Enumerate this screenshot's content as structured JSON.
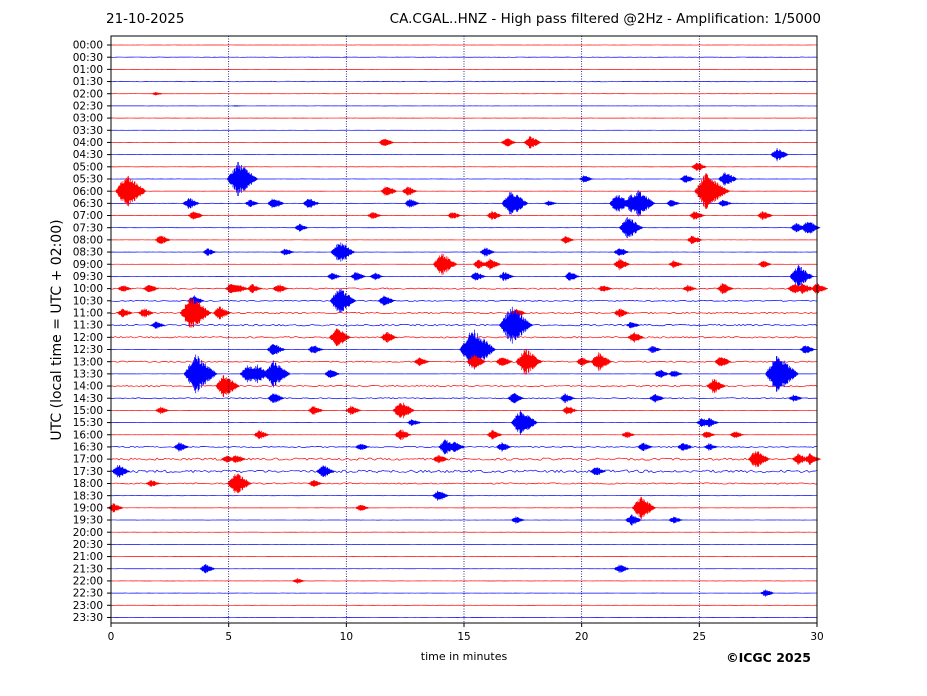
{
  "header": {
    "date": "21-10-2025",
    "title": "CA.CGAL..HNZ - High pass filtered @2Hz - Amplification: 1/5000"
  },
  "footer": {
    "copyright": "©ICGC 2025"
  },
  "chart_data": {
    "type": "line",
    "title": "CA.CGAL..HNZ - High pass filtered @2Hz - Amplification: 1/5000",
    "xlabel": "time in minutes",
    "ylabel": "UTC (local time = UTC + 02:00)",
    "xlim": [
      0,
      30
    ],
    "x_ticks": [
      "0",
      "5",
      "10",
      "15",
      "20",
      "25",
      "30"
    ],
    "y_ticks": [
      "00:00",
      "00:30",
      "01:00",
      "01:30",
      "02:00",
      "02:30",
      "03:00",
      "03:30",
      "04:00",
      "04:30",
      "05:00",
      "05:30",
      "06:00",
      "06:30",
      "07:00",
      "07:30",
      "08:00",
      "08:30",
      "09:00",
      "09:30",
      "10:00",
      "10:30",
      "11:00",
      "11:30",
      "12:00",
      "12:30",
      "13:00",
      "13:30",
      "14:00",
      "14:30",
      "15:00",
      "15:30",
      "16:00",
      "16:30",
      "17:00",
      "17:30",
      "18:00",
      "18:30",
      "19:00",
      "19:30",
      "20:00",
      "20:30",
      "21:00",
      "21:30",
      "22:00",
      "22:30",
      "23:00",
      "23:30"
    ],
    "vertical_gridlines": [
      5,
      10,
      15,
      20,
      25
    ],
    "colors": [
      "#ff0000",
      "#0000ff"
    ],
    "grid": true,
    "events": [
      {
        "row": 4,
        "t": 1.9,
        "a": 2
      },
      {
        "row": 5,
        "t": 5.3,
        "a": 1
      },
      {
        "row": 8,
        "t": 11.6,
        "a": 5
      },
      {
        "row": 8,
        "t": 16.8,
        "a": 5
      },
      {
        "row": 8,
        "t": 17.8,
        "a": 7
      },
      {
        "row": 9,
        "t": 28.3,
        "a": 7
      },
      {
        "row": 10,
        "t": 24.9,
        "a": 5
      },
      {
        "row": 11,
        "t": 5.4,
        "a": 18
      },
      {
        "row": 11,
        "t": 20.1,
        "a": 4
      },
      {
        "row": 11,
        "t": 24.4,
        "a": 5
      },
      {
        "row": 11,
        "t": 26.1,
        "a": 8
      },
      {
        "row": 12,
        "t": 0.65,
        "a": 18
      },
      {
        "row": 12,
        "t": 11.7,
        "a": 6
      },
      {
        "row": 12,
        "t": 12.6,
        "a": 5
      },
      {
        "row": 12,
        "t": 25.3,
        "a": 20
      },
      {
        "row": 12,
        "t": 25.9,
        "a": 5
      },
      {
        "row": 13,
        "t": 3.3,
        "a": 6
      },
      {
        "row": 13,
        "t": 5.9,
        "a": 4
      },
      {
        "row": 13,
        "t": 6.9,
        "a": 6
      },
      {
        "row": 13,
        "t": 8.4,
        "a": 6
      },
      {
        "row": 13,
        "t": 12.7,
        "a": 5
      },
      {
        "row": 13,
        "t": 17.0,
        "a": 14
      },
      {
        "row": 13,
        "t": 18.6,
        "a": 3
      },
      {
        "row": 13,
        "t": 21.5,
        "a": 10
      },
      {
        "row": 13,
        "t": 22.1,
        "a": 10
      },
      {
        "row": 13,
        "t": 22.4,
        "a": 14
      },
      {
        "row": 13,
        "t": 23.8,
        "a": 4
      },
      {
        "row": 13,
        "t": 26.0,
        "a": 4
      },
      {
        "row": 14,
        "t": 3.5,
        "a": 5
      },
      {
        "row": 14,
        "t": 11.1,
        "a": 4
      },
      {
        "row": 14,
        "t": 14.5,
        "a": 4
      },
      {
        "row": 14,
        "t": 16.2,
        "a": 5
      },
      {
        "row": 14,
        "t": 24.8,
        "a": 5
      },
      {
        "row": 14,
        "t": 27.7,
        "a": 5
      },
      {
        "row": 15,
        "t": 8.0,
        "a": 4
      },
      {
        "row": 15,
        "t": 21.95,
        "a": 12
      },
      {
        "row": 15,
        "t": 29.1,
        "a": 5
      },
      {
        "row": 15,
        "t": 29.6,
        "a": 8
      },
      {
        "row": 16,
        "t": 2.1,
        "a": 5
      },
      {
        "row": 16,
        "t": 19.3,
        "a": 4
      },
      {
        "row": 16,
        "t": 24.7,
        "a": 5
      },
      {
        "row": 17,
        "t": 4.1,
        "a": 4
      },
      {
        "row": 17,
        "t": 7.4,
        "a": 4
      },
      {
        "row": 17,
        "t": 9.7,
        "a": 12
      },
      {
        "row": 17,
        "t": 15.9,
        "a": 5
      },
      {
        "row": 17,
        "t": 21.6,
        "a": 5
      },
      {
        "row": 18,
        "t": 14.05,
        "a": 12
      },
      {
        "row": 18,
        "t": 15.6,
        "a": 5
      },
      {
        "row": 18,
        "t": 16.1,
        "a": 6
      },
      {
        "row": 18,
        "t": 21.6,
        "a": 6
      },
      {
        "row": 18,
        "t": 23.9,
        "a": 4
      },
      {
        "row": 18,
        "t": 27.7,
        "a": 4
      },
      {
        "row": 19,
        "t": 9.4,
        "a": 4
      },
      {
        "row": 19,
        "t": 10.4,
        "a": 5
      },
      {
        "row": 19,
        "t": 11.2,
        "a": 4
      },
      {
        "row": 19,
        "t": 15.5,
        "a": 5
      },
      {
        "row": 19,
        "t": 16.7,
        "a": 5
      },
      {
        "row": 19,
        "t": 19.5,
        "a": 5
      },
      {
        "row": 19,
        "t": 29.2,
        "a": 12
      },
      {
        "row": 20,
        "t": 0.5,
        "a": 4
      },
      {
        "row": 20,
        "t": 1.6,
        "a": 5
      },
      {
        "row": 20,
        "t": 5.1,
        "a": 6
      },
      {
        "row": 20,
        "t": 5.4,
        "a": 5
      },
      {
        "row": 20,
        "t": 6.0,
        "a": 5
      },
      {
        "row": 20,
        "t": 7.1,
        "a": 5
      },
      {
        "row": 20,
        "t": 20.9,
        "a": 4
      },
      {
        "row": 20,
        "t": 24.5,
        "a": 4
      },
      {
        "row": 20,
        "t": 26.0,
        "a": 6
      },
      {
        "row": 20,
        "t": 29.0,
        "a": 6
      },
      {
        "row": 20,
        "t": 29.4,
        "a": 6
      },
      {
        "row": 20,
        "t": 30.0,
        "a": 6
      },
      {
        "row": 21,
        "t": 3.5,
        "a": 6
      },
      {
        "row": 21,
        "t": 9.7,
        "a": 14
      },
      {
        "row": 21,
        "t": 11.6,
        "a": 6
      },
      {
        "row": 22,
        "t": 0.5,
        "a": 5
      },
      {
        "row": 22,
        "t": 1.4,
        "a": 5
      },
      {
        "row": 22,
        "t": 3.4,
        "a": 18
      },
      {
        "row": 22,
        "t": 4.6,
        "a": 7
      },
      {
        "row": 22,
        "t": 17.2,
        "a": 5
      },
      {
        "row": 22,
        "t": 21.6,
        "a": 5
      },
      {
        "row": 23,
        "t": 1.9,
        "a": 4
      },
      {
        "row": 23,
        "t": 17.0,
        "a": 20
      },
      {
        "row": 23,
        "t": 22.1,
        "a": 4
      },
      {
        "row": 24,
        "t": 9.6,
        "a": 10
      },
      {
        "row": 24,
        "t": 11.7,
        "a": 6
      },
      {
        "row": 24,
        "t": 22.2,
        "a": 6
      },
      {
        "row": 25,
        "t": 6.9,
        "a": 7
      },
      {
        "row": 25,
        "t": 8.6,
        "a": 5
      },
      {
        "row": 25,
        "t": 15.35,
        "a": 22
      },
      {
        "row": 25,
        "t": 23.0,
        "a": 4
      },
      {
        "row": 25,
        "t": 29.5,
        "a": 5
      },
      {
        "row": 26,
        "t": 13.1,
        "a": 5
      },
      {
        "row": 26,
        "t": 15.4,
        "a": 8
      },
      {
        "row": 26,
        "t": 16.6,
        "a": 6
      },
      {
        "row": 26,
        "t": 17.6,
        "a": 14
      },
      {
        "row": 26,
        "t": 20.0,
        "a": 5
      },
      {
        "row": 26,
        "t": 20.7,
        "a": 10
      },
      {
        "row": 26,
        "t": 25.9,
        "a": 6
      },
      {
        "row": 27,
        "t": 3.6,
        "a": 20
      },
      {
        "row": 27,
        "t": 5.8,
        "a": 10
      },
      {
        "row": 27,
        "t": 6.2,
        "a": 10
      },
      {
        "row": 27,
        "t": 6.9,
        "a": 14
      },
      {
        "row": 27,
        "t": 9.3,
        "a": 5
      },
      {
        "row": 27,
        "t": 23.3,
        "a": 5
      },
      {
        "row": 27,
        "t": 23.9,
        "a": 4
      },
      {
        "row": 27,
        "t": 28.3,
        "a": 20
      },
      {
        "row": 28,
        "t": 4.8,
        "a": 12
      },
      {
        "row": 28,
        "t": 25.6,
        "a": 8
      },
      {
        "row": 29,
        "t": 6.9,
        "a": 6
      },
      {
        "row": 29,
        "t": 17.1,
        "a": 6
      },
      {
        "row": 29,
        "t": 19.3,
        "a": 5
      },
      {
        "row": 29,
        "t": 23.1,
        "a": 5
      },
      {
        "row": 29,
        "t": 29.0,
        "a": 4
      },
      {
        "row": 30,
        "t": 2.1,
        "a": 4
      },
      {
        "row": 30,
        "t": 8.6,
        "a": 5
      },
      {
        "row": 30,
        "t": 10.2,
        "a": 5
      },
      {
        "row": 30,
        "t": 12.3,
        "a": 10
      },
      {
        "row": 30,
        "t": 19.4,
        "a": 5
      },
      {
        "row": 31,
        "t": 12.8,
        "a": 4
      },
      {
        "row": 31,
        "t": 17.4,
        "a": 14
      },
      {
        "row": 31,
        "t": 25.1,
        "a": 5
      },
      {
        "row": 31,
        "t": 25.4,
        "a": 5
      },
      {
        "row": 32,
        "t": 6.3,
        "a": 5
      },
      {
        "row": 32,
        "t": 12.3,
        "a": 6
      },
      {
        "row": 32,
        "t": 16.2,
        "a": 5
      },
      {
        "row": 32,
        "t": 21.9,
        "a": 4
      },
      {
        "row": 32,
        "t": 25.3,
        "a": 4
      },
      {
        "row": 32,
        "t": 26.5,
        "a": 4
      },
      {
        "row": 33,
        "t": 2.9,
        "a": 5
      },
      {
        "row": 33,
        "t": 10.6,
        "a": 4
      },
      {
        "row": 33,
        "t": 14.2,
        "a": 8
      },
      {
        "row": 33,
        "t": 14.6,
        "a": 6
      },
      {
        "row": 33,
        "t": 16.6,
        "a": 5
      },
      {
        "row": 33,
        "t": 22.6,
        "a": 5
      },
      {
        "row": 33,
        "t": 24.3,
        "a": 5
      },
      {
        "row": 33,
        "t": 25.4,
        "a": 4
      },
      {
        "row": 34,
        "t": 4.9,
        "a": 4
      },
      {
        "row": 34,
        "t": 5.3,
        "a": 5
      },
      {
        "row": 34,
        "t": 13.9,
        "a": 5
      },
      {
        "row": 34,
        "t": 27.4,
        "a": 10
      },
      {
        "row": 34,
        "t": 29.2,
        "a": 6
      },
      {
        "row": 34,
        "t": 29.7,
        "a": 6
      },
      {
        "row": 35,
        "t": 0.3,
        "a": 7
      },
      {
        "row": 35,
        "t": 9.0,
        "a": 7
      },
      {
        "row": 35,
        "t": 20.6,
        "a": 5
      },
      {
        "row": 36,
        "t": 1.7,
        "a": 4
      },
      {
        "row": 36,
        "t": 5.3,
        "a": 12
      },
      {
        "row": 36,
        "t": 8.6,
        "a": 4
      },
      {
        "row": 37,
        "t": 13.9,
        "a": 6
      },
      {
        "row": 38,
        "t": 0.1,
        "a": 5
      },
      {
        "row": 38,
        "t": 10.6,
        "a": 4
      },
      {
        "row": 38,
        "t": 22.5,
        "a": 12
      },
      {
        "row": 39,
        "t": 17.2,
        "a": 4
      },
      {
        "row": 39,
        "t": 22.1,
        "a": 6
      },
      {
        "row": 39,
        "t": 23.9,
        "a": 4
      },
      {
        "row": 43,
        "t": 4.0,
        "a": 5
      },
      {
        "row": 43,
        "t": 21.6,
        "a": 5
      },
      {
        "row": 44,
        "t": 7.9,
        "a": 3
      },
      {
        "row": 45,
        "t": 27.8,
        "a": 4
      }
    ],
    "noisy_rows": [
      {
        "row": 1,
        "level": 0.3
      },
      {
        "row": 3,
        "level": 0.6
      },
      {
        "row": 20,
        "level": 1.4
      },
      {
        "row": 21,
        "level": 1.2
      },
      {
        "row": 22,
        "level": 1.5
      },
      {
        "row": 23,
        "level": 1.6
      },
      {
        "row": 24,
        "level": 1.5
      },
      {
        "row": 26,
        "level": 1.3
      },
      {
        "row": 28,
        "level": 1.3
      },
      {
        "row": 29,
        "level": 1.1
      },
      {
        "row": 33,
        "level": 1.2
      },
      {
        "row": 34,
        "level": 2.2
      },
      {
        "row": 35,
        "level": 2.6
      },
      {
        "row": 36,
        "level": 1.3
      }
    ]
  }
}
